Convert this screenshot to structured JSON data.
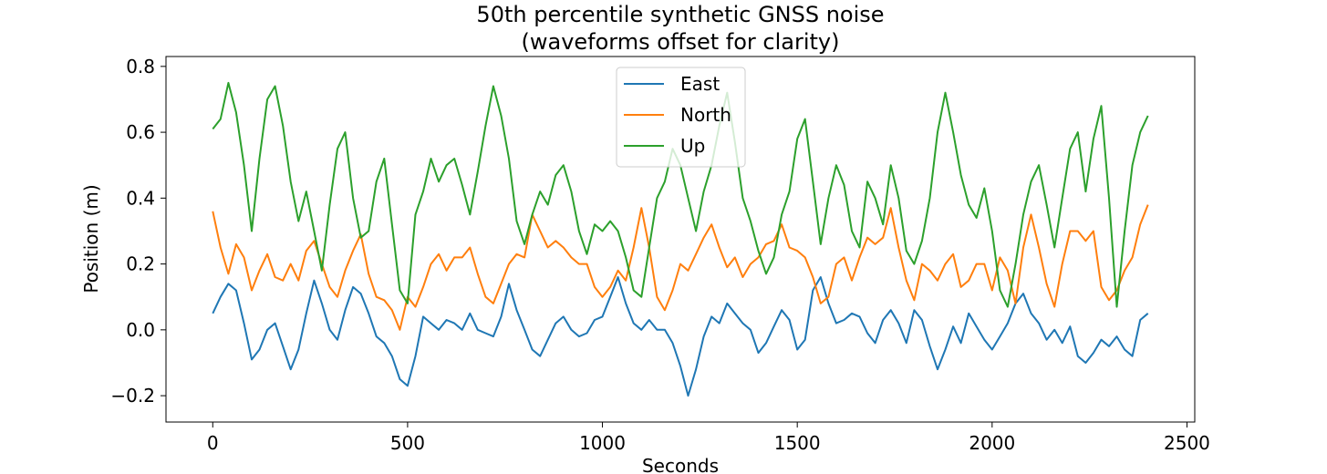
{
  "chart_data": {
    "type": "line",
    "title": "50th percentile synthetic GNSS noise",
    "subtitle": "(waveforms offset for clarity)",
    "xlabel": "Seconds",
    "ylabel": "Position (m)",
    "xlim": [
      -120,
      2520
    ],
    "ylim": [
      -0.28,
      0.83
    ],
    "xticks": [
      0,
      500,
      1000,
      1500,
      2000,
      2500
    ],
    "xtick_labels": [
      "0",
      "500",
      "1000",
      "1500",
      "2000",
      "2500"
    ],
    "yticks": [
      -0.2,
      0.0,
      0.2,
      0.4,
      0.6,
      0.8
    ],
    "ytick_labels": [
      "−0.2",
      "0.0",
      "0.2",
      "0.4",
      "0.6",
      "0.8"
    ],
    "grid": false,
    "legend_position": "upper center",
    "series": [
      {
        "name": "East",
        "color": "#1f77b4",
        "x": [
          0,
          20,
          40,
          60,
          80,
          100,
          120,
          140,
          160,
          180,
          200,
          220,
          240,
          260,
          280,
          300,
          320,
          340,
          360,
          380,
          400,
          420,
          440,
          460,
          480,
          500,
          520,
          540,
          560,
          580,
          600,
          620,
          640,
          660,
          680,
          700,
          720,
          740,
          760,
          780,
          800,
          820,
          840,
          860,
          880,
          900,
          920,
          940,
          960,
          980,
          1000,
          1020,
          1040,
          1060,
          1080,
          1100,
          1120,
          1140,
          1160,
          1180,
          1200,
          1220,
          1240,
          1260,
          1280,
          1300,
          1320,
          1340,
          1360,
          1380,
          1400,
          1420,
          1440,
          1460,
          1480,
          1500,
          1520,
          1540,
          1560,
          1580,
          1600,
          1620,
          1640,
          1660,
          1680,
          1700,
          1720,
          1740,
          1760,
          1780,
          1800,
          1820,
          1840,
          1860,
          1880,
          1900,
          1920,
          1940,
          1960,
          1980,
          2000,
          2020,
          2040,
          2060,
          2080,
          2100,
          2120,
          2140,
          2160,
          2180,
          2200,
          2220,
          2240,
          2260,
          2280,
          2300,
          2320,
          2340,
          2360,
          2380,
          2400
        ],
        "y": [
          0.05,
          0.1,
          0.14,
          0.12,
          0.02,
          -0.09,
          -0.06,
          0.0,
          0.02,
          -0.05,
          -0.12,
          -0.06,
          0.05,
          0.15,
          0.08,
          0.0,
          -0.03,
          0.06,
          0.13,
          0.11,
          0.05,
          -0.02,
          -0.04,
          -0.08,
          -0.15,
          -0.17,
          -0.08,
          0.04,
          0.02,
          0.0,
          0.03,
          0.02,
          0.0,
          0.05,
          0.0,
          -0.01,
          -0.02,
          0.04,
          0.14,
          0.06,
          0.0,
          -0.06,
          -0.08,
          -0.03,
          0.02,
          0.04,
          0.0,
          -0.02,
          -0.01,
          0.03,
          0.04,
          0.1,
          0.16,
          0.08,
          0.02,
          0.0,
          0.03,
          0.0,
          0.0,
          -0.04,
          -0.11,
          -0.2,
          -0.12,
          -0.02,
          0.04,
          0.02,
          0.08,
          0.05,
          0.02,
          0.0,
          -0.07,
          -0.04,
          0.01,
          0.06,
          0.03,
          -0.06,
          -0.03,
          0.12,
          0.16,
          0.08,
          0.02,
          0.03,
          0.05,
          0.04,
          -0.01,
          -0.04,
          0.03,
          0.06,
          0.02,
          -0.04,
          0.06,
          0.03,
          -0.05,
          -0.12,
          -0.06,
          0.01,
          -0.04,
          0.05,
          0.01,
          -0.03,
          -0.06,
          -0.02,
          0.02,
          0.08,
          0.11,
          0.05,
          0.02,
          -0.03,
          0.0,
          -0.04,
          0.01,
          -0.08,
          -0.1,
          -0.07,
          -0.03,
          -0.05,
          -0.02,
          -0.06,
          -0.08,
          0.03,
          0.05
        ]
      },
      {
        "name": "North",
        "color": "#ff7f0e",
        "x": [
          0,
          20,
          40,
          60,
          80,
          100,
          120,
          140,
          160,
          180,
          200,
          220,
          240,
          260,
          280,
          300,
          320,
          340,
          360,
          380,
          400,
          420,
          440,
          460,
          480,
          500,
          520,
          540,
          560,
          580,
          600,
          620,
          640,
          660,
          680,
          700,
          720,
          740,
          760,
          780,
          800,
          820,
          840,
          860,
          880,
          900,
          920,
          940,
          960,
          980,
          1000,
          1020,
          1040,
          1060,
          1080,
          1100,
          1120,
          1140,
          1160,
          1180,
          1200,
          1220,
          1240,
          1260,
          1280,
          1300,
          1320,
          1340,
          1360,
          1380,
          1400,
          1420,
          1440,
          1460,
          1480,
          1500,
          1520,
          1540,
          1560,
          1580,
          1600,
          1620,
          1640,
          1660,
          1680,
          1700,
          1720,
          1740,
          1760,
          1780,
          1800,
          1820,
          1840,
          1860,
          1880,
          1900,
          1920,
          1940,
          1960,
          1980,
          2000,
          2020,
          2040,
          2060,
          2080,
          2100,
          2120,
          2140,
          2160,
          2180,
          2200,
          2220,
          2240,
          2260,
          2280,
          2300,
          2320,
          2340,
          2360,
          2380,
          2400
        ],
        "y": [
          0.36,
          0.25,
          0.17,
          0.26,
          0.22,
          0.12,
          0.18,
          0.23,
          0.16,
          0.15,
          0.2,
          0.15,
          0.24,
          0.27,
          0.2,
          0.13,
          0.1,
          0.18,
          0.24,
          0.29,
          0.17,
          0.1,
          0.09,
          0.06,
          0.0,
          0.1,
          0.07,
          0.13,
          0.2,
          0.23,
          0.18,
          0.22,
          0.22,
          0.25,
          0.17,
          0.1,
          0.08,
          0.14,
          0.2,
          0.23,
          0.22,
          0.35,
          0.3,
          0.25,
          0.27,
          0.25,
          0.22,
          0.2,
          0.2,
          0.13,
          0.1,
          0.13,
          0.18,
          0.15,
          0.25,
          0.37,
          0.25,
          0.1,
          0.06,
          0.12,
          0.2,
          0.18,
          0.23,
          0.28,
          0.32,
          0.25,
          0.19,
          0.22,
          0.16,
          0.2,
          0.22,
          0.26,
          0.27,
          0.32,
          0.25,
          0.24,
          0.22,
          0.16,
          0.08,
          0.1,
          0.2,
          0.22,
          0.15,
          0.22,
          0.28,
          0.26,
          0.28,
          0.37,
          0.25,
          0.15,
          0.09,
          0.2,
          0.18,
          0.15,
          0.2,
          0.23,
          0.13,
          0.15,
          0.2,
          0.2,
          0.12,
          0.22,
          0.18,
          0.08,
          0.25,
          0.35,
          0.25,
          0.14,
          0.07,
          0.2,
          0.3,
          0.3,
          0.27,
          0.3,
          0.13,
          0.09,
          0.12,
          0.18,
          0.22,
          0.32,
          0.38
        ]
      },
      {
        "name": "Up",
        "color": "#2ca02c",
        "x": [
          0,
          20,
          40,
          60,
          80,
          100,
          120,
          140,
          160,
          180,
          200,
          220,
          240,
          260,
          280,
          300,
          320,
          340,
          360,
          380,
          400,
          420,
          440,
          460,
          480,
          500,
          520,
          540,
          560,
          580,
          600,
          620,
          640,
          660,
          680,
          700,
          720,
          740,
          760,
          780,
          800,
          820,
          840,
          860,
          880,
          900,
          920,
          940,
          960,
          980,
          1000,
          1020,
          1040,
          1060,
          1080,
          1100,
          1120,
          1140,
          1160,
          1180,
          1200,
          1220,
          1240,
          1260,
          1280,
          1300,
          1320,
          1340,
          1360,
          1380,
          1400,
          1420,
          1440,
          1460,
          1480,
          1500,
          1520,
          1540,
          1560,
          1580,
          1600,
          1620,
          1640,
          1660,
          1680,
          1700,
          1720,
          1740,
          1760,
          1780,
          1800,
          1820,
          1840,
          1860,
          1880,
          1900,
          1920,
          1940,
          1960,
          1980,
          2000,
          2020,
          2040,
          2060,
          2080,
          2100,
          2120,
          2140,
          2160,
          2180,
          2200,
          2220,
          2240,
          2260,
          2280,
          2300,
          2320,
          2340,
          2360,
          2380,
          2400
        ],
        "y": [
          0.61,
          0.64,
          0.75,
          0.66,
          0.5,
          0.3,
          0.52,
          0.7,
          0.74,
          0.62,
          0.45,
          0.33,
          0.42,
          0.3,
          0.18,
          0.38,
          0.55,
          0.6,
          0.4,
          0.28,
          0.3,
          0.45,
          0.52,
          0.32,
          0.12,
          0.08,
          0.35,
          0.42,
          0.52,
          0.45,
          0.5,
          0.52,
          0.44,
          0.35,
          0.48,
          0.62,
          0.74,
          0.65,
          0.52,
          0.33,
          0.26,
          0.35,
          0.42,
          0.38,
          0.47,
          0.5,
          0.42,
          0.3,
          0.23,
          0.32,
          0.3,
          0.33,
          0.3,
          0.22,
          0.12,
          0.1,
          0.25,
          0.4,
          0.45,
          0.55,
          0.5,
          0.4,
          0.3,
          0.42,
          0.5,
          0.62,
          0.72,
          0.57,
          0.4,
          0.33,
          0.24,
          0.17,
          0.22,
          0.35,
          0.42,
          0.58,
          0.64,
          0.45,
          0.26,
          0.4,
          0.5,
          0.44,
          0.3,
          0.25,
          0.45,
          0.4,
          0.32,
          0.5,
          0.4,
          0.24,
          0.2,
          0.27,
          0.4,
          0.6,
          0.72,
          0.6,
          0.47,
          0.38,
          0.34,
          0.43,
          0.3,
          0.12,
          0.07,
          0.2,
          0.35,
          0.45,
          0.5,
          0.38,
          0.25,
          0.4,
          0.55,
          0.6,
          0.42,
          0.58,
          0.68,
          0.4,
          0.07,
          0.3,
          0.5,
          0.6,
          0.65
        ]
      }
    ]
  }
}
